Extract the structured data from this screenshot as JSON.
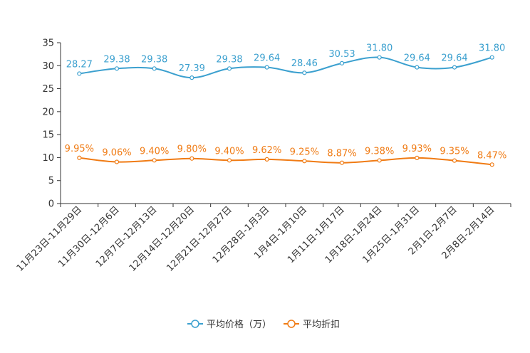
{
  "chart_data": {
    "type": "line",
    "categories": [
      "11月23日-11月29日",
      "11月30日-12月6日",
      "12月7日-12月13日",
      "12月14日-12月20日",
      "12月21日-12月27日",
      "12月28日-1月3日",
      "1月4日-1月10日",
      "1月11日-1月17日",
      "1月18日-1月24日",
      "1月25日-1月31日",
      "2月1日-2月7日",
      "2月8日-2月14日"
    ],
    "ylim": [
      0,
      35
    ],
    "yticks": [
      0,
      5,
      10,
      15,
      20,
      25,
      30,
      35
    ],
    "grid": false,
    "legend_position": "bottom-center",
    "series": [
      {
        "name": "平均价格（万）",
        "color": "#3ba0cf",
        "values": [
          28.27,
          29.38,
          29.38,
          27.39,
          29.38,
          29.64,
          28.46,
          30.53,
          31.8,
          29.64,
          29.64,
          31.8
        ],
        "labels": [
          "28.27",
          "29.38",
          "29.38",
          "27.39",
          "29.38",
          "29.64",
          "28.46",
          "30.53",
          "31.80",
          "29.64",
          "29.64",
          "31.80"
        ]
      },
      {
        "name": "平均折扣",
        "color": "#f07b14",
        "values": [
          9.95,
          9.06,
          9.4,
          9.8,
          9.4,
          9.62,
          9.25,
          8.87,
          9.38,
          9.93,
          9.35,
          8.47
        ],
        "labels": [
          "9.95%",
          "9.06%",
          "9.40%",
          "9.80%",
          "9.40%",
          "9.62%",
          "9.25%",
          "8.87%",
          "9.38%",
          "9.93%",
          "9.35%",
          "8.47%"
        ]
      }
    ]
  }
}
